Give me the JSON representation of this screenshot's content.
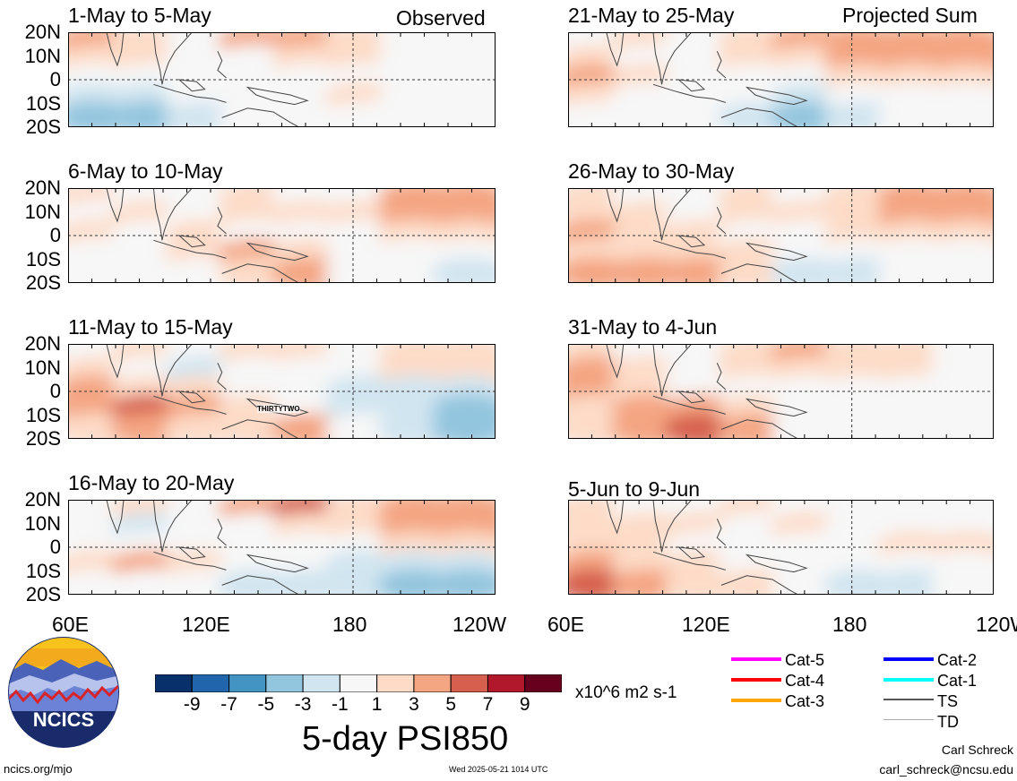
{
  "observed_label": "Observed",
  "projected_label": "Projected Sum",
  "panels": [
    {
      "title": "1-May to 5-May"
    },
    {
      "title": "6-May to 10-May"
    },
    {
      "title": "11-May to 15-May"
    },
    {
      "title": "16-May to 20-May"
    },
    {
      "title": "21-May to 25-May"
    },
    {
      "title": "26-May to 30-May"
    },
    {
      "title": "31-May to 4-Jun"
    },
    {
      "title": "5-Jun to 9-Jun"
    }
  ],
  "lat_labels": [
    "20N",
    "10N",
    "0",
    "10S",
    "20S"
  ],
  "lon_labels": [
    "60E",
    "120E",
    "180",
    "120W"
  ],
  "storm_label": "THIRTYTWO",
  "colorbar": {
    "colors": [
      "#08306b",
      "#2166ac",
      "#4393c3",
      "#92c5de",
      "#d1e5f0",
      "#f7f7f7",
      "#fddbc7",
      "#f4a582",
      "#d6604d",
      "#b2182b",
      "#67001f"
    ],
    "tick_labels": [
      "-9",
      "-7",
      "-5",
      "-3",
      "-1",
      "1",
      "3",
      "5",
      "7",
      "9"
    ],
    "units": "x10^6 m2 s-1"
  },
  "figure_title": "5-day PSI850",
  "legend": [
    {
      "label": "Cat-5",
      "color": "#ff00ff"
    },
    {
      "label": "Cat-4",
      "color": "#ff0000"
    },
    {
      "label": "Cat-3",
      "color": "#ffa500"
    },
    {
      "label": "Cat-2",
      "color": "#0000ff"
    },
    {
      "label": "Cat-1",
      "color": "#00ffff"
    },
    {
      "label": "TS",
      "color": "#555555"
    },
    {
      "label": "TD",
      "color": "#aaaaaa"
    }
  ],
  "logo_text": "NCICS",
  "footer_url": "ncics.org/mjo",
  "timestamp": "Wed 2025-05-21 1014 UTC",
  "credit_name": "Carl Schreck",
  "credit_email": "carl_schreck@ncsu.edu",
  "map_panels_color_levels": [
    {
      "values": [
        [
          3,
          1,
          -1,
          3,
          3,
          1,
          -1,
          -1
        ],
        [
          1,
          1,
          -1,
          -1,
          1,
          1,
          -1,
          -1
        ],
        [
          -1,
          -1,
          -1,
          -1,
          -1,
          -1,
          -1,
          -1
        ],
        [
          -3,
          -3,
          -1,
          -1,
          -1,
          1,
          -1,
          -1
        ],
        [
          -5,
          -5,
          -3,
          -1,
          -1,
          -1,
          -1,
          -1
        ]
      ]
    },
    {
      "values": [
        [
          1,
          -1,
          -1,
          1,
          -1,
          -1,
          3,
          3
        ],
        [
          -1,
          1,
          -1,
          1,
          1,
          1,
          3,
          3
        ],
        [
          1,
          -1,
          1,
          -1,
          -1,
          -1,
          1,
          1
        ],
        [
          -1,
          -1,
          1,
          3,
          1,
          -1,
          -1,
          -1
        ],
        [
          -1,
          -1,
          -1,
          1,
          3,
          -1,
          -1,
          -3
        ]
      ]
    },
    {
      "values": [
        [
          -1,
          1,
          -1,
          1,
          1,
          -1,
          1,
          1
        ],
        [
          1,
          -1,
          -3,
          -1,
          -1,
          -1,
          1,
          1
        ],
        [
          3,
          1,
          1,
          -1,
          -1,
          -3,
          -3,
          -3
        ],
        [
          3,
          5,
          3,
          1,
          -1,
          -3,
          -3,
          -5
        ],
        [
          1,
          3,
          1,
          1,
          3,
          -1,
          -3,
          -5
        ]
      ]
    },
    {
      "values": [
        [
          -1,
          1,
          -1,
          3,
          5,
          1,
          3,
          3
        ],
        [
          -1,
          -3,
          -1,
          -1,
          1,
          1,
          3,
          3
        ],
        [
          -1,
          -1,
          -1,
          -1,
          -1,
          -1,
          1,
          1
        ],
        [
          1,
          3,
          1,
          -1,
          -1,
          -3,
          -3,
          -3
        ],
        [
          -1,
          -1,
          -1,
          -3,
          -3,
          -3,
          -5,
          -5
        ]
      ]
    },
    {
      "values": [
        [
          -1,
          1,
          -1,
          1,
          3,
          3,
          3,
          3
        ],
        [
          1,
          -1,
          -1,
          1,
          1,
          3,
          3,
          3
        ],
        [
          3,
          1,
          -1,
          -1,
          -1,
          1,
          1,
          1
        ],
        [
          1,
          -1,
          -1,
          -1,
          -3,
          -1,
          -1,
          -1
        ],
        [
          -1,
          -1,
          -1,
          -3,
          -5,
          -3,
          -1,
          -1
        ]
      ]
    },
    {
      "values": [
        [
          1,
          -1,
          -1,
          1,
          -1,
          1,
          3,
          3
        ],
        [
          1,
          1,
          -1,
          1,
          1,
          1,
          3,
          3
        ],
        [
          3,
          1,
          1,
          -1,
          -1,
          1,
          1,
          1
        ],
        [
          1,
          1,
          1,
          1,
          -1,
          -1,
          -1,
          -1
        ],
        [
          3,
          3,
          3,
          1,
          -3,
          -3,
          -1,
          -1
        ]
      ]
    },
    {
      "values": [
        [
          1,
          -1,
          -1,
          1,
          3,
          1,
          1,
          -1
        ],
        [
          3,
          1,
          -1,
          1,
          1,
          1,
          1,
          -1
        ],
        [
          3,
          1,
          -1,
          -1,
          -1,
          -1,
          -1,
          -1
        ],
        [
          1,
          3,
          3,
          1,
          -1,
          -1,
          -1,
          -1
        ],
        [
          1,
          3,
          5,
          3,
          -1,
          -1,
          -1,
          -1
        ]
      ]
    },
    {
      "values": [
        [
          1,
          -1,
          -1,
          1,
          -1,
          -1,
          -1,
          -1
        ],
        [
          1,
          1,
          1,
          -1,
          1,
          -1,
          -1,
          -1
        ],
        [
          1,
          1,
          -1,
          -1,
          -1,
          -1,
          1,
          1
        ],
        [
          3,
          1,
          1,
          -1,
          -1,
          -1,
          -1,
          -1
        ],
        [
          5,
          3,
          1,
          1,
          -1,
          -3,
          -3,
          -1
        ]
      ]
    }
  ]
}
